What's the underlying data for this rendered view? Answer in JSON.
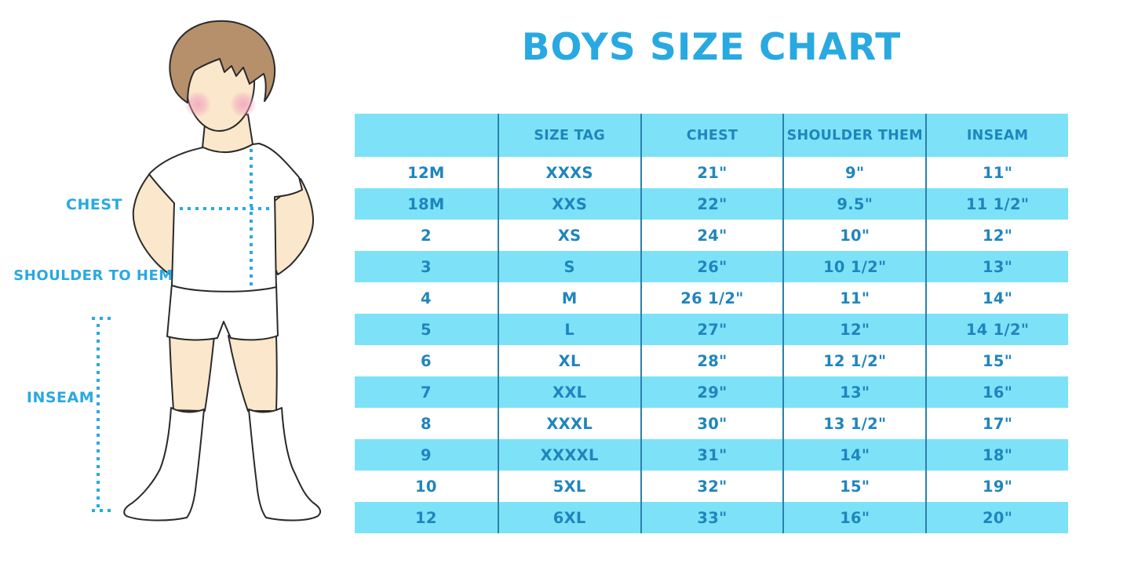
{
  "title": "BOYS SIZE CHART",
  "figure": {
    "labels": {
      "chest": "CHEST",
      "shoulder_to_hem": "SHOULDER TO HEM",
      "inseam": "INSEAM"
    }
  },
  "colors": {
    "accent_blue": "#29A9E1",
    "table_fill_blue": "#7DE2F8",
    "table_text_blue": "#1F85BE",
    "divider_blue": "#2A80AD",
    "skin": "#FBE7CB",
    "hair_brown": "#B6906B",
    "cheek_pink": "#F2A9C2",
    "outline": "#2A2A2A"
  },
  "chart_data": {
    "type": "table",
    "title": "BOYS SIZE CHART",
    "columns": [
      "",
      "SIZE TAG",
      "CHEST",
      "SHOULDER THEM",
      "INSEAM"
    ],
    "rows": [
      [
        "12M",
        "XXXS",
        "21\"",
        "9\"",
        "11\""
      ],
      [
        "18M",
        "XXS",
        "22\"",
        "9.5\"",
        "11 1/2\""
      ],
      [
        "2",
        "XS",
        "24\"",
        "10\"",
        "12\""
      ],
      [
        "3",
        "S",
        "26\"",
        "10 1/2\"",
        "13\""
      ],
      [
        "4",
        "M",
        "26 1/2\"",
        "11\"",
        "14\""
      ],
      [
        "5",
        "L",
        "27\"",
        "12\"",
        "14 1/2\""
      ],
      [
        "6",
        "XL",
        "28\"",
        "12 1/2\"",
        "15\""
      ],
      [
        "7",
        "XXL",
        "29\"",
        "13\"",
        "16\""
      ],
      [
        "8",
        "XXXL",
        "30\"",
        "13 1/2\"",
        "17\""
      ],
      [
        "9",
        "XXXXL",
        "31\"",
        "14\"",
        "18\""
      ],
      [
        "10",
        "5XL",
        "32\"",
        "15\"",
        "19\""
      ],
      [
        "12",
        "6XL",
        "33\"",
        "16\"",
        "20\""
      ]
    ],
    "layout": {
      "alternating_row_fill": [
        "white",
        "light_blue"
      ],
      "header_fill": "light_blue",
      "column_dividers": true,
      "row_dividers": false
    }
  }
}
